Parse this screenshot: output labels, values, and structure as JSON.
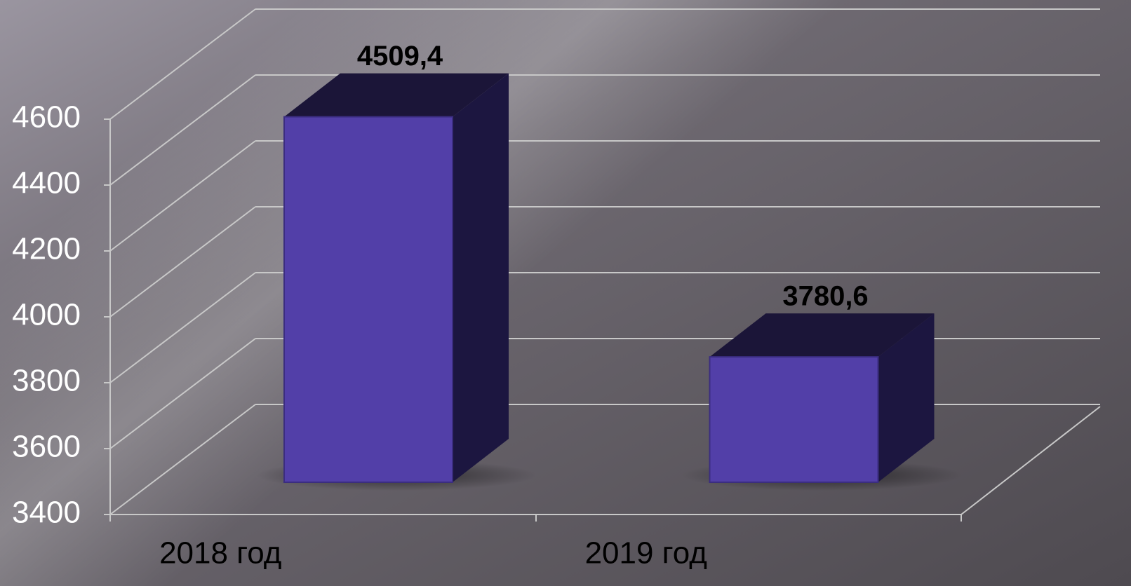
{
  "chart_data": {
    "type": "bar",
    "categories": [
      "2018 год",
      "2019 год"
    ],
    "values": [
      4509.4,
      3780.6
    ],
    "value_labels": [
      "4509,4",
      "3780,6"
    ],
    "color": "#523fa8",
    "ylim": [
      3400,
      4600
    ],
    "yticks": [
      3400,
      3600,
      3800,
      4000,
      4200,
      4400,
      4600
    ],
    "grid": true
  }
}
